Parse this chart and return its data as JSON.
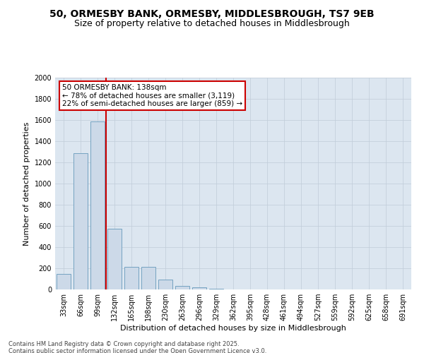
{
  "title1": "50, ORMESBY BANK, ORMESBY, MIDDLESBROUGH, TS7 9EB",
  "title2": "Size of property relative to detached houses in Middlesbrough",
  "xlabel": "Distribution of detached houses by size in Middlesbrough",
  "ylabel": "Number of detached properties",
  "categories": [
    "33sqm",
    "66sqm",
    "99sqm",
    "132sqm",
    "165sqm",
    "198sqm",
    "230sqm",
    "263sqm",
    "296sqm",
    "329sqm",
    "362sqm",
    "395sqm",
    "428sqm",
    "461sqm",
    "494sqm",
    "527sqm",
    "559sqm",
    "592sqm",
    "625sqm",
    "658sqm",
    "691sqm"
  ],
  "values": [
    150,
    1290,
    1590,
    575,
    215,
    215,
    95,
    35,
    20,
    5,
    3,
    0,
    0,
    0,
    0,
    0,
    0,
    0,
    0,
    0,
    0
  ],
  "bar_color": "#ccd9e8",
  "bar_edge_color": "#6699bb",
  "grid_color": "#c0ccd8",
  "bg_color": "#dce6f0",
  "vline_color": "#cc0000",
  "annotation_text": "50 ORMESBY BANK: 138sqm\n← 78% of detached houses are smaller (3,119)\n22% of semi-detached houses are larger (859) →",
  "annotation_box_facecolor": "white",
  "annotation_box_edgecolor": "#cc0000",
  "ylim": [
    0,
    2000
  ],
  "yticks": [
    0,
    200,
    400,
    600,
    800,
    1000,
    1200,
    1400,
    1600,
    1800,
    2000
  ],
  "footer1": "Contains HM Land Registry data © Crown copyright and database right 2025.",
  "footer2": "Contains public sector information licensed under the Open Government Licence v3.0.",
  "title1_fontsize": 10,
  "title2_fontsize": 9,
  "tick_fontsize": 7,
  "label_fontsize": 8,
  "annotation_fontsize": 7.5,
  "footer_fontsize": 6
}
